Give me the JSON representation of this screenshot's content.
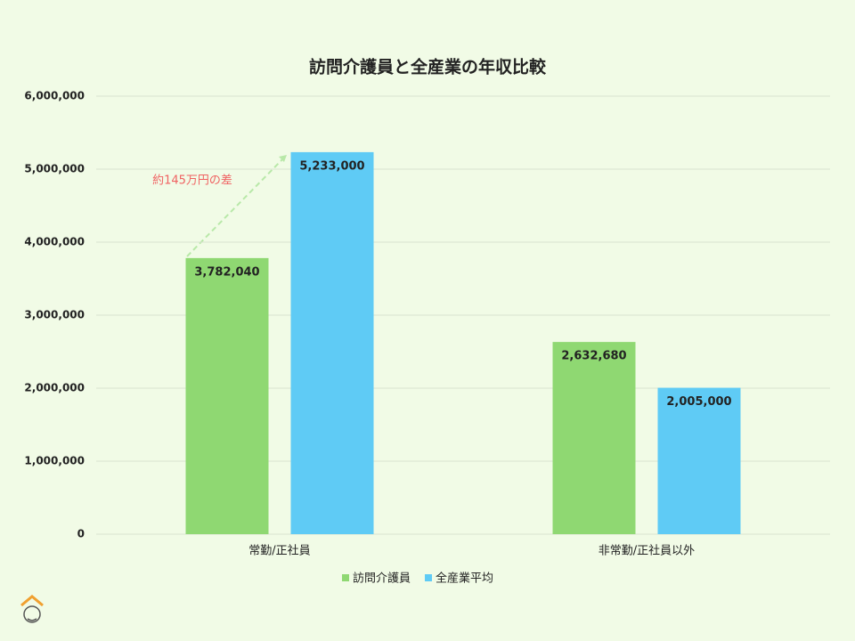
{
  "chart_data": {
    "type": "bar",
    "title": "訪問介護員と全産業の年収比較",
    "categories": [
      "常勤/正社員",
      "非常勤/正社員以外"
    ],
    "series": [
      {
        "name": "訪問介護員",
        "color": "#8fd872",
        "values": [
          3782040,
          2632680
        ],
        "value_labels": [
          "3,782,040",
          "2,632,680"
        ]
      },
      {
        "name": "全産業平均",
        "color": "#5fcbf5",
        "values": [
          5233000,
          2005000
        ],
        "value_labels": [
          "5,233,000",
          "2,005,000"
        ]
      }
    ],
    "ylim": [
      0,
      6000000
    ],
    "yticks": [
      0,
      {
        "value": 1000000,
        "label": "1,000,000"
      },
      {
        "value": 2000000,
        "label": "2,000,000"
      },
      {
        "value": 3000000,
        "label": "3,000,000"
      },
      {
        "value": 4000000,
        "label": "4,000,000"
      },
      {
        "value": 5000000,
        "label": "5,000,000"
      },
      {
        "value": 6000000,
        "label": "6,000,000"
      }
    ],
    "grid": true,
    "legend": "bottom",
    "annotation": "約145万円の差"
  }
}
